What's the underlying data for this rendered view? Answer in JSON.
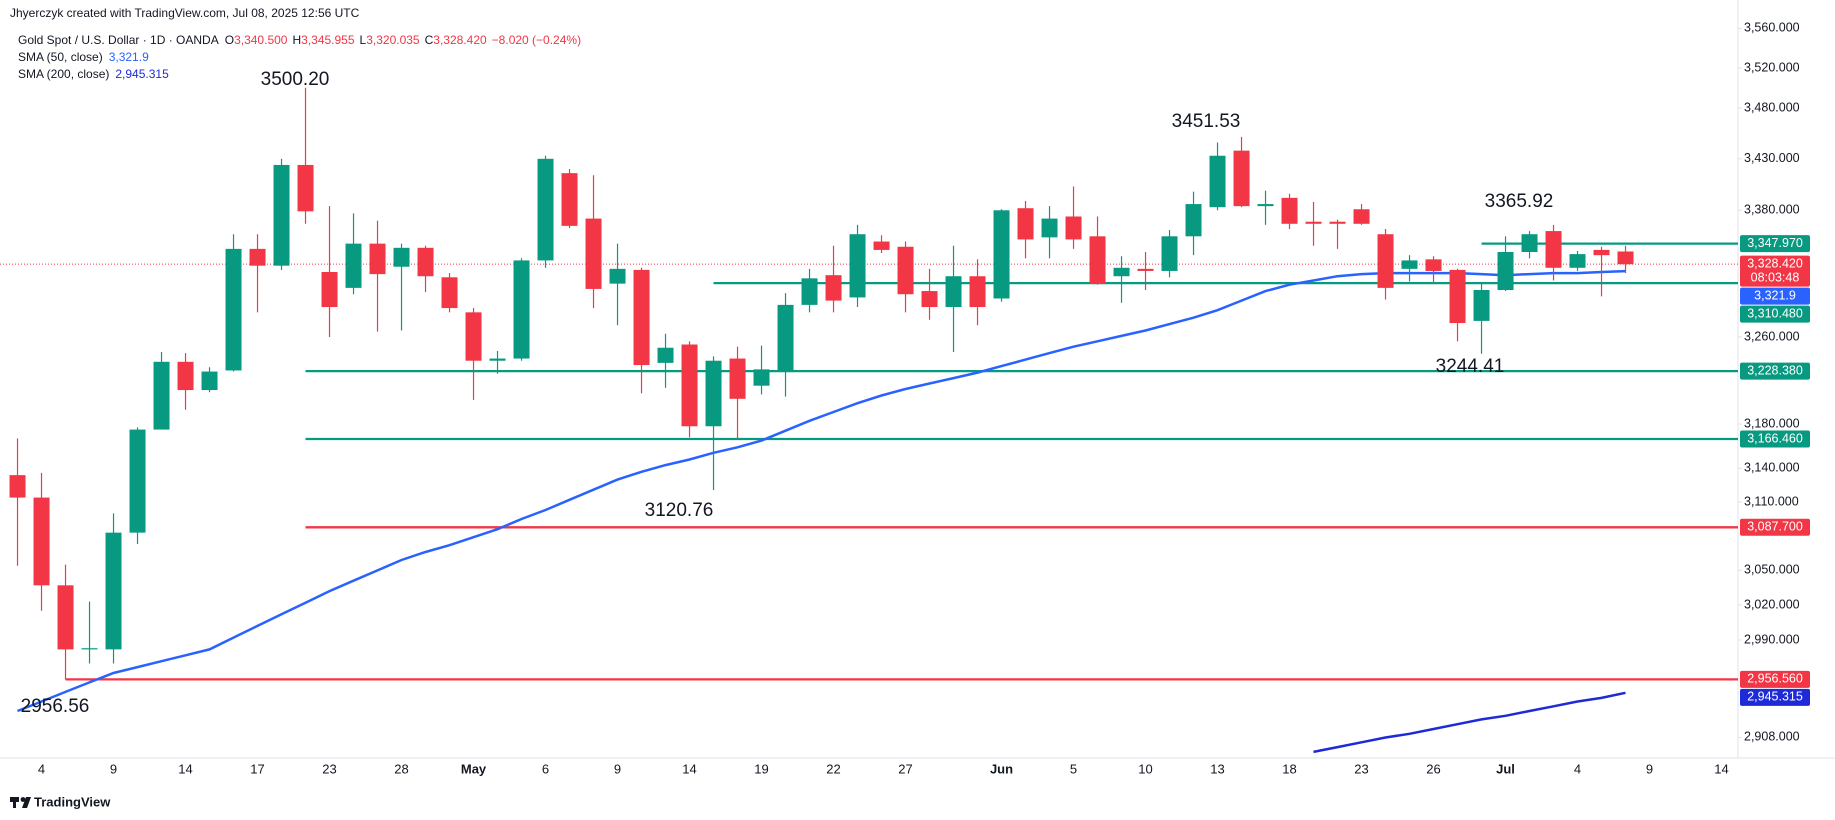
{
  "header": {
    "author": "Jhyerczyk created with TradingView.com, Jul 08, 2025 12:56 UTC",
    "symbol": "Gold Spot / U.S. Dollar · 1D · OANDA",
    "ohlc": [
      {
        "key": "O",
        "value": "3,340.500"
      },
      {
        "key": "H",
        "value": "3,345.955"
      },
      {
        "key": "L",
        "value": "3,320.035"
      },
      {
        "key": "C",
        "value": "3,328.420"
      }
    ],
    "change": "−8.020 (−0.24%)",
    "footer": "TradingView"
  },
  "chart_data": {
    "type": "candlestick",
    "log_scale": true,
    "grid": false,
    "up_color": "#089981",
    "down_color": "#f23645",
    "categories": [
      null,
      "4",
      null,
      null,
      "9",
      null,
      null,
      "14",
      null,
      null,
      "17",
      null,
      null,
      "23",
      null,
      null,
      "28",
      null,
      null,
      "May",
      null,
      null,
      "6",
      null,
      null,
      "9",
      null,
      null,
      "14",
      null,
      null,
      "19",
      null,
      null,
      "22",
      null,
      null,
      "27",
      null,
      null,
      null,
      "Jun",
      null,
      null,
      "5",
      null,
      null,
      "10",
      null,
      null,
      "13",
      null,
      null,
      "18",
      null,
      null,
      "23",
      null,
      null,
      "26",
      null,
      null,
      "Jul",
      null,
      null,
      "4",
      null,
      null,
      "9",
      null,
      null,
      "14"
    ],
    "open": [
      3134,
      3114,
      3037,
      2982,
      2982,
      3083,
      3175,
      3237,
      3211,
      3229,
      3343,
      3327,
      3424,
      3321,
      3306,
      3348,
      3326,
      3344,
      3316,
      3283,
      3238,
      3240,
      3332,
      3416,
      3372,
      3310,
      3323,
      3236,
      3253,
      3178,
      3240,
      3215,
      3229,
      3290,
      3318,
      3297,
      3350,
      3345,
      3303,
      3288,
      3317,
      3296,
      3382,
      3354,
      3374,
      3355,
      3317,
      3324,
      3322,
      3355,
      3383,
      3438,
      3384,
      3392,
      3369,
      3369,
      3381,
      3357,
      3324,
      3333,
      3323,
      3275,
      3304,
      3340,
      3360,
      3325,
      3342,
      3340.5,
      null,
      null,
      null,
      null
    ],
    "high": [
      3167,
      3136,
      3055,
      3023,
      3100,
      3177,
      3246,
      3245,
      3232,
      3357,
      3357,
      3430,
      3500.2,
      3384,
      3377,
      3370,
      3348,
      3346,
      3320,
      3287,
      3247,
      3334,
      3433,
      3420,
      3414,
      3348,
      3325,
      3263,
      3256,
      3242,
      3251,
      3252,
      3301,
      3324,
      3346,
      3366,
      3356,
      3350,
      3324,
      3346,
      3333,
      3381,
      3389,
      3384,
      3403,
      3374,
      3336,
      3340,
      3361,
      3398,
      3446,
      3451.53,
      3399,
      3396,
      3388,
      3371,
      3386,
      3362,
      3337,
      3336,
      3324,
      3310,
      3355,
      3360,
      3365.92,
      3341,
      3345,
      3345.955,
      null,
      null,
      null,
      null
    ],
    "low": [
      3054,
      3015,
      2956.56,
      2970,
      2970,
      3073,
      3175,
      3193,
      3209,
      3228,
      3283,
      3323,
      3367,
      3260,
      3300,
      3265,
      3266,
      3302,
      3283,
      3202,
      3226,
      3238,
      3325,
      3363,
      3287,
      3271,
      3208,
      3213,
      3168,
      3120.76,
      3166,
      3207,
      3205,
      3283,
      3283,
      3288,
      3339,
      3283,
      3276,
      3246,
      3271,
      3293,
      3334,
      3334,
      3343,
      3309,
      3292,
      3304,
      3316,
      3337,
      3380,
      3383,
      3366,
      3362,
      3346,
      3343,
      3366,
      3295,
      3312,
      3311,
      3256,
      3244.41,
      3303,
      3334,
      3313,
      3322,
      3298,
      3320.035,
      null,
      null,
      null,
      null
    ],
    "close": [
      3114,
      3037,
      2982,
      2983,
      3083,
      3175,
      3237,
      3211,
      3228,
      3343,
      3327,
      3424,
      3379,
      3288,
      3348,
      3319,
      3344,
      3317,
      3287,
      3238,
      3240,
      3332,
      3430,
      3365,
      3305,
      3324,
      3234,
      3250,
      3178,
      3238,
      3203,
      3230,
      3290,
      3315,
      3294,
      3357,
      3342,
      3300,
      3288,
      3317,
      3288,
      3380,
      3352,
      3372,
      3352,
      3310,
      3325,
      3322,
      3355,
      3386,
      3433,
      3384,
      3386,
      3367,
      3367,
      3367,
      3367,
      3306,
      3332,
      3322,
      3273,
      3304,
      3340,
      3357,
      3325,
      3338,
      3337,
      3328.42,
      null,
      null,
      null,
      null
    ],
    "series": [
      {
        "name": "SMA (50, close)",
        "color": "#2962ff",
        "legend_value": "3,321.9",
        "last": 3321.9,
        "values": [
          2930,
          2938,
          2946,
          2954,
          2962,
          2967,
          2972,
          2977,
          2982,
          2992,
          3002,
          3012,
          3022,
          3032,
          3041,
          3050,
          3059,
          3066,
          3072,
          3079,
          3086,
          3095,
          3103,
          3112,
          3121,
          3130,
          3137,
          3143,
          3148,
          3154,
          3159,
          3165,
          3174,
          3183,
          3191,
          3199,
          3206,
          3212,
          3217,
          3222,
          3227,
          3233,
          3239,
          3245,
          3251,
          3256,
          3261,
          3266,
          3272,
          3278,
          3285,
          3294,
          3303,
          3309,
          3313,
          3317,
          3319,
          3320,
          3320,
          3320,
          3320,
          3319,
          3318,
          3319,
          3320,
          3320,
          3321,
          3321.9,
          null,
          null,
          null,
          null
        ]
      },
      {
        "name": "SMA (200, close)",
        "color": "#1e2ad8",
        "legend_value": "2,945.315",
        "last": 2945.315,
        "values": [
          null,
          null,
          null,
          null,
          null,
          null,
          null,
          null,
          null,
          null,
          null,
          null,
          null,
          null,
          null,
          null,
          null,
          null,
          null,
          null,
          null,
          null,
          null,
          null,
          null,
          null,
          null,
          null,
          null,
          null,
          null,
          null,
          null,
          null,
          null,
          null,
          null,
          null,
          null,
          null,
          null,
          null,
          null,
          null,
          null,
          null,
          null,
          null,
          null,
          null,
          null,
          null,
          null,
          null,
          2896,
          2900,
          2904,
          2908,
          2911,
          2915,
          2919,
          2923,
          2926,
          2930,
          2934,
          2938,
          2941,
          2945.315,
          null,
          null,
          null,
          null
        ]
      }
    ],
    "levels": [
      {
        "value": 3347.97,
        "label": "3,347.970",
        "color": "#089981"
      },
      {
        "value": 3310.48,
        "label": "3,310.480",
        "color": "#089981"
      },
      {
        "value": 3228.38,
        "label": "3,228.380",
        "color": "#089981"
      },
      {
        "value": 3166.46,
        "label": "3,166.460",
        "color": "#089981"
      },
      {
        "value": 3087.7,
        "label": "3,087.700",
        "color": "#f23645"
      },
      {
        "value": 2956.56,
        "label": "2,956.560",
        "color": "#f23645"
      }
    ],
    "last_price": {
      "value": 3328.42,
      "label": "3,328.420",
      "countdown": "08:03:48",
      "color": "#f23645"
    },
    "annotations": [
      "3500.20",
      "3451.53",
      "3365.92",
      "3244.41",
      "3120.76",
      "2956.56"
    ],
    "ylim": [
      2891,
      3589
    ],
    "yticks": [
      {
        "value": 3560,
        "label": "3,560.000"
      },
      {
        "value": 3520,
        "label": "3,520.000"
      },
      {
        "value": 3480,
        "label": "3,480.000"
      },
      {
        "value": 3430,
        "label": "3,430.000"
      },
      {
        "value": 3380,
        "label": "3,380.000"
      },
      {
        "value": 3260,
        "label": "3,260.000"
      },
      {
        "value": 3180,
        "label": "3,180.000"
      },
      {
        "value": 3140,
        "label": "3,140.000"
      },
      {
        "value": 3110,
        "label": "3,110.000"
      },
      {
        "value": 3050,
        "label": "3,050.000"
      },
      {
        "value": 3020,
        "label": "3,020.000"
      },
      {
        "value": 2990,
        "label": "2,990.000"
      },
      {
        "value": 2908,
        "label": "2,908.000"
      }
    ]
  }
}
